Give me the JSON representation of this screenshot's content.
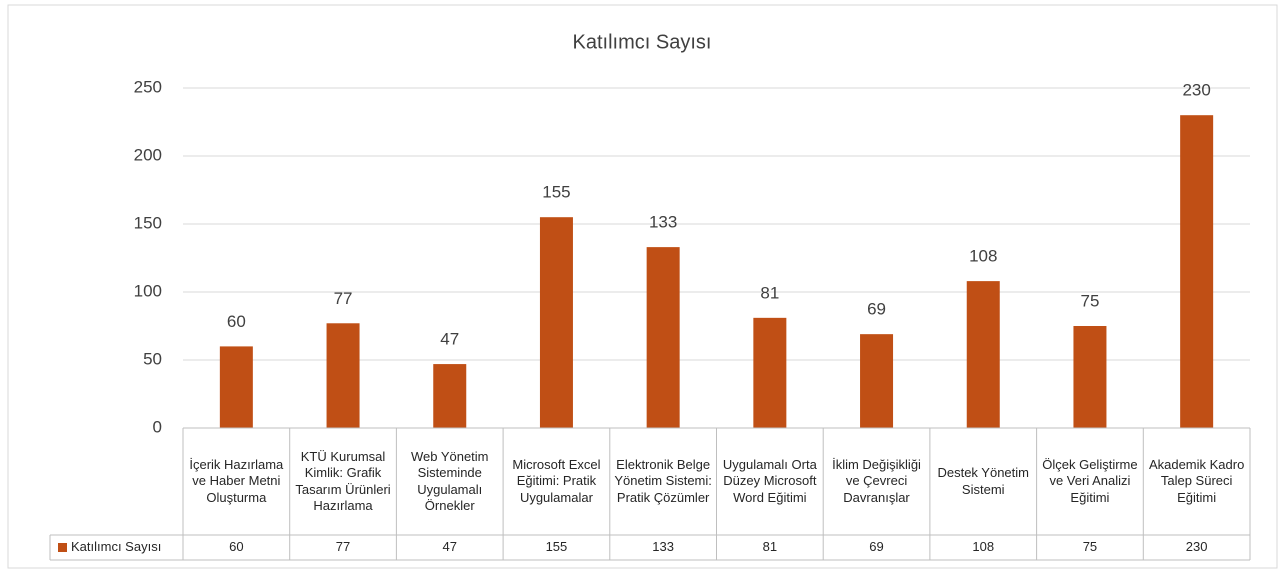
{
  "chart_data": {
    "type": "bar",
    "title": "Katılımcı Sayısı",
    "categories": [
      "İçerik Hazırlama ve Haber Metni Oluşturma",
      "KTÜ Kurumsal Kimlik: Grafik Tasarım Ürünleri Hazırlama",
      "Web Yönetim Sisteminde Uygulamalı Örnekler",
      "Microsoft Excel Eğitimi: Pratik Uygulamalar",
      "Elektronik Belge Yönetim Sistemi: Pratik Çözümler",
      "Uygulamalı Orta Düzey Microsoft Word Eğitimi",
      "İklim Değişikliği ve Çevreci Davranışlar",
      "Destek Yönetim Sistemi",
      "Ölçek Geliştirme ve Veri Analizi Eğitimi",
      "Akademik Kadro Talep Süreci Eğitimi"
    ],
    "series": [
      {
        "name": "Katılımcı Sayısı",
        "color": "#c04f15",
        "values": [
          60,
          77,
          47,
          155,
          133,
          81,
          69,
          108,
          75,
          230
        ]
      }
    ],
    "ylim": [
      0,
      250
    ],
    "yticks": [
      0,
      50,
      100,
      150,
      200,
      250
    ],
    "grid": true,
    "data_labels": true,
    "data_table": true
  }
}
